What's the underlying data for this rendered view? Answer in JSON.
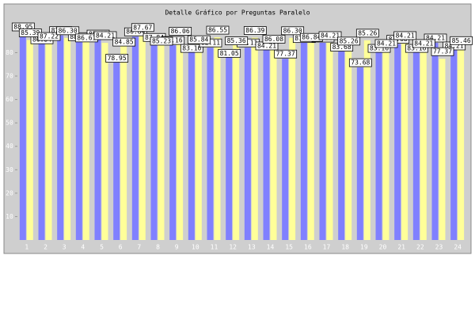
{
  "chart_data": {
    "type": "bar",
    "title": "Detalle Gráfico por Preguntas Paralelo",
    "categories": [
      "1",
      "2",
      "3",
      "4",
      "5",
      "6",
      "7",
      "8",
      "9",
      "10",
      "11",
      "12",
      "13",
      "14",
      "15",
      "16",
      "17",
      "18",
      "19",
      "20",
      "21",
      "22",
      "23",
      "24"
    ],
    "series": [
      {
        "name": "Serie 1",
        "color": "#8080ff",
        "values": [
          88.95,
          86.84,
          87.37,
          88.16,
          85.87,
          78.95,
          86.84,
          87.84,
          83.16,
          83.16,
          82.11,
          81.05,
          82.11,
          84.21,
          77.37,
          87.37,
          84.21,
          83.68,
          73.68,
          83.16,
          83.68,
          83.16,
          84.21,
          84.21
        ],
        "value_labels": [
          "88.95",
          "86.84",
          "87.37",
          "88.16",
          "85.87",
          "78.95",
          "86.84",
          "87.84",
          "83.16",
          "83.16",
          "82.11",
          "81.05",
          "82.11",
          "84.21",
          "77.37",
          "87.37",
          "84.21",
          "83.68",
          "73.68",
          "83.16",
          "83.68",
          "83.16",
          "84.21",
          "84.21"
        ]
      },
      {
        "name": "Serie 2",
        "color": "#ffff99",
        "values": [
          85.39,
          87.22,
          86.3,
          86.61,
          84.21,
          84.85,
          87.67,
          85.23,
          86.06,
          85.84,
          86.55,
          85.36,
          86.39,
          86.08,
          86.3,
          86.84,
          84.21,
          85.26,
          85.26,
          84.21,
          84.21,
          84.21,
          77.37,
          85.46
        ],
        "value_labels": [
          "85.39",
          "87.22",
          "86.30",
          "86.61",
          "84.21",
          "84.85",
          "87.67",
          "85.23",
          "86.06",
          "85.84",
          "86.55",
          "85.36",
          "86.39",
          "86.08",
          "86.30",
          "86.84",
          "84.21",
          "85.26",
          "85.26",
          "84.21",
          "84.21",
          "84.21",
          "77.37",
          "85.46"
        ]
      }
    ],
    "ylim": [
      0,
      93
    ],
    "yticks": [
      10,
      20,
      30,
      40,
      50,
      60,
      70,
      80
    ]
  }
}
